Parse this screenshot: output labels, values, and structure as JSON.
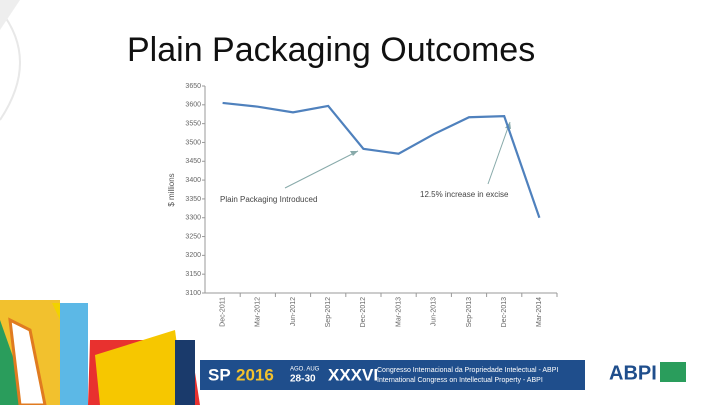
{
  "title": "Plain Packaging Outcomes",
  "chart_data": {
    "type": "line",
    "ylabel": "$ millions",
    "categories": [
      "Dec-2011",
      "Mar-2012",
      "Jun-2012",
      "Sep-2012",
      "Dec-2012",
      "Mar-2013",
      "Jun-2013",
      "Sep-2013",
      "Dec-2013",
      "Mar-2014"
    ],
    "series": [
      {
        "color": "#4f81bd",
        "values": [
          3605,
          3595,
          3580,
          3597,
          3483,
          3470,
          3522,
          3567,
          3570,
          3300
        ]
      }
    ],
    "ylim": [
      3100,
      3650
    ],
    "yticks": [
      3100,
      3150,
      3200,
      3250,
      3300,
      3350,
      3400,
      3450,
      3500,
      3550,
      3600,
      3650
    ],
    "grid": false,
    "annotations": [
      "Plain Packaging Introduced",
      "12.5% increase in excise"
    ]
  },
  "footer": {
    "city": "SP",
    "year": "2016",
    "dates_label": "AGO. AUG",
    "dates": "28-30",
    "edition": "XXXVI",
    "line1": "Congresso Internacional da Propriedade Intelectual - ABPI",
    "line2": "International Congress on Intellectual Property - ABPI",
    "logo": "ABPI"
  }
}
